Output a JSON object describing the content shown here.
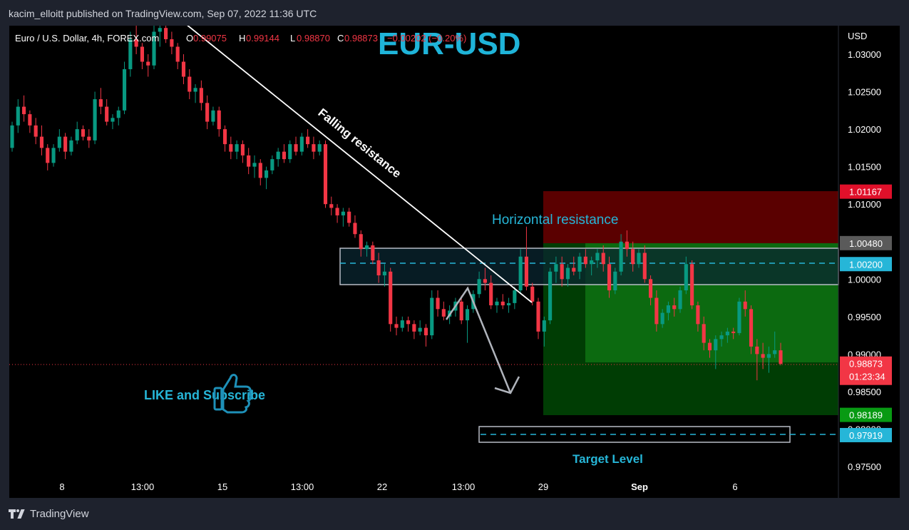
{
  "header": {
    "published_line": "kacim_elloitt published on TradingView.com, Sep 07, 2022 11:36 UTC"
  },
  "legend": {
    "symbol": "Euro / U.S. Dollar, 4h, FOREX.com",
    "open_label": "O",
    "open_value": "0.99075",
    "high_label": "H",
    "high_value": "0.99144",
    "low_label": "L",
    "low_value": "0.98870",
    "close_label": "C",
    "close_value": "0.98873",
    "change_value": "−0.00202 (−0.20%)"
  },
  "chart_data": {
    "type": "candlestick",
    "title": "EUR-USD",
    "currency_label": "USD",
    "ylim": [
      0.972,
      1.0355
    ],
    "y_ticks": [
      "1.03000",
      "1.02500",
      "1.02000",
      "1.01500",
      "1.01000",
      "1.00500",
      "1.00000",
      "0.99500",
      "0.99000",
      "0.98500",
      "0.98000",
      "0.97500"
    ],
    "x_ticks": [
      "8",
      "13:00",
      "15",
      "13:00",
      "22",
      "13:00",
      "29",
      "Sep",
      "6"
    ],
    "price_tags": [
      {
        "label": "1.01167",
        "value": 1.01167,
        "color": "#e0102a"
      },
      {
        "label": "1.00480",
        "value": 1.0048,
        "color": "#5a5a5a"
      },
      {
        "label": "1.00200",
        "value": 1.002,
        "color": "#26b6d8"
      },
      {
        "label": "0.98873",
        "value": 0.98873,
        "color": "#f23645",
        "extra": "01:23:34"
      },
      {
        "label": "0.98189",
        "value": 0.98189,
        "color": "#089a13"
      },
      {
        "label": "0.97919",
        "value": 0.97919,
        "color": "#26b6d8"
      }
    ],
    "annotations": {
      "falling_resistance": "Falling resistance",
      "horizontal_resistance": "Horizontal resistance",
      "target_level": "Target Level",
      "like_subscribe": "LIKE and Subscribe"
    },
    "levels": {
      "stop_loss": 1.01167,
      "entry": 1.0048,
      "resistance_mid": 1.002,
      "resistance_zone": [
        0.9993,
        1.0044
      ],
      "current_price": 0.98873,
      "take_profit": 0.98189,
      "target_level": 0.97919
    },
    "colors": {
      "up": "#089981",
      "down": "#f23645",
      "accent": "#26b6d8"
    },
    "candles": [
      [
        1.0175,
        1.021,
        1.017,
        1.0205
      ],
      [
        1.0205,
        1.024,
        1.0195,
        1.023
      ],
      [
        1.023,
        1.0245,
        1.021,
        1.022
      ],
      [
        1.022,
        1.0225,
        1.0195,
        1.0205
      ],
      [
        1.0205,
        1.0215,
        1.018,
        1.019
      ],
      [
        1.019,
        1.0205,
        1.0165,
        1.0175
      ],
      [
        1.0175,
        1.018,
        1.0145,
        1.0155
      ],
      [
        1.0155,
        1.018,
        1.015,
        1.0175
      ],
      [
        1.0175,
        1.02,
        1.017,
        1.019
      ],
      [
        1.019,
        1.0195,
        1.016,
        1.017
      ],
      [
        1.017,
        1.019,
        1.0165,
        1.0185
      ],
      [
        1.0185,
        1.021,
        1.018,
        1.02
      ],
      [
        1.02,
        1.0205,
        1.0185,
        1.019
      ],
      [
        1.019,
        1.02,
        1.0175,
        1.0185
      ],
      [
        1.0185,
        1.025,
        1.018,
        1.024
      ],
      [
        1.024,
        1.0255,
        1.022,
        1.023
      ],
      [
        1.023,
        1.024,
        1.0205,
        1.021
      ],
      [
        1.021,
        1.022,
        1.02,
        1.0215
      ],
      [
        1.0215,
        1.023,
        1.0205,
        1.0225
      ],
      [
        1.0225,
        1.029,
        1.022,
        1.028
      ],
      [
        1.028,
        1.033,
        1.027,
        1.032
      ],
      [
        1.032,
        1.035,
        1.03,
        1.031
      ],
      [
        1.031,
        1.0315,
        1.028,
        1.029
      ],
      [
        1.029,
        1.03,
        1.027,
        1.0285
      ],
      [
        1.0285,
        1.034,
        1.028,
        1.033
      ],
      [
        1.033,
        1.0345,
        1.031,
        1.0335
      ],
      [
        1.0335,
        1.034,
        1.0315,
        1.032
      ],
      [
        1.032,
        1.033,
        1.03,
        1.031
      ],
      [
        1.031,
        1.0315,
        1.028,
        1.029
      ],
      [
        1.029,
        1.03,
        1.026,
        1.027
      ],
      [
        1.027,
        1.028,
        1.024,
        1.025
      ],
      [
        1.025,
        1.026,
        1.0235,
        1.0255
      ],
      [
        1.0255,
        1.0265,
        1.0225,
        1.0235
      ],
      [
        1.0235,
        1.0245,
        1.02,
        1.021
      ],
      [
        1.021,
        1.023,
        1.0205,
        1.0225
      ],
      [
        1.0225,
        1.023,
        1.019,
        1.02
      ],
      [
        1.02,
        1.0205,
        1.017,
        1.018
      ],
      [
        1.018,
        1.019,
        1.016,
        1.017
      ],
      [
        1.017,
        1.0185,
        1.016,
        1.018
      ],
      [
        1.018,
        1.0185,
        1.0155,
        1.0165
      ],
      [
        1.0165,
        1.0175,
        1.014,
        1.015
      ],
      [
        1.015,
        1.0165,
        1.0135,
        1.0155
      ],
      [
        1.0155,
        1.016,
        1.0125,
        1.0135
      ],
      [
        1.0135,
        1.015,
        1.012,
        1.0145
      ],
      [
        1.0145,
        1.0165,
        1.014,
        1.016
      ],
      [
        1.016,
        1.0175,
        1.015,
        1.017
      ],
      [
        1.017,
        1.018,
        1.0155,
        1.016
      ],
      [
        1.016,
        1.0185,
        1.0155,
        1.018
      ],
      [
        1.018,
        1.019,
        1.0165,
        1.017
      ],
      [
        1.017,
        1.0195,
        1.0165,
        1.019
      ],
      [
        1.019,
        1.02,
        1.0175,
        1.018
      ],
      [
        1.018,
        1.019,
        1.016,
        1.017
      ],
      [
        1.017,
        1.0185,
        1.0165,
        1.018
      ],
      [
        1.018,
        1.0185,
        1.0095,
        1.01
      ],
      [
        1.01,
        1.011,
        1.0085,
        1.0095
      ],
      [
        1.0095,
        1.01,
        1.0075,
        1.0085
      ],
      [
        1.0085,
        1.0095,
        1.007,
        1.009
      ],
      [
        1.009,
        1.0095,
        1.007,
        1.0075
      ],
      [
        1.0075,
        1.0085,
        1.0055,
        1.006
      ],
      [
        1.006,
        1.0065,
        1.003,
        1.004
      ],
      [
        1.004,
        1.005,
        1.003,
        1.0045
      ],
      [
        1.0045,
        1.005,
        1.002,
        1.0025
      ],
      [
        1.0025,
        1.0035,
        0.9995,
        1.0005
      ],
      [
        1.0005,
        1.002,
        0.999,
        1.001
      ],
      [
        1.001,
        1.0015,
        0.993,
        0.994
      ],
      [
        0.994,
        0.995,
        0.9925,
        0.9935
      ],
      [
        0.9935,
        0.995,
        0.993,
        0.9945
      ],
      [
        0.9945,
        0.995,
        0.993,
        0.994
      ],
      [
        0.994,
        0.9945,
        0.992,
        0.993
      ],
      [
        0.993,
        0.9945,
        0.9925,
        0.9935
      ],
      [
        0.9935,
        0.994,
        0.991,
        0.9925
      ],
      [
        0.9925,
        0.9985,
        0.992,
        0.9975
      ],
      [
        0.9975,
        0.9985,
        0.995,
        0.996
      ],
      [
        0.996,
        0.997,
        0.9945,
        0.995
      ],
      [
        0.995,
        0.9965,
        0.994,
        0.9958
      ],
      [
        0.9958,
        0.9975,
        0.995,
        0.997
      ],
      [
        0.997,
        0.9978,
        0.994,
        0.9945
      ],
      [
        0.9945,
        0.9965,
        0.9915,
        0.996
      ],
      [
        0.996,
        0.9985,
        0.9955,
        0.998
      ],
      [
        0.998,
        1.001,
        0.9975,
        1.0
      ],
      [
        1.0,
        1.0015,
        0.9985,
        0.9995
      ],
      [
        0.9995,
        1.0005,
        0.996,
        0.9965
      ],
      [
        0.9965,
        0.9975,
        0.9955,
        0.997
      ],
      [
        0.997,
        0.998,
        0.996,
        0.9965
      ],
      [
        0.9965,
        0.9975,
        0.9955,
        0.9968
      ],
      [
        0.9968,
        0.999,
        0.996,
        0.9985
      ],
      [
        0.9985,
        1.004,
        0.998,
        1.003
      ],
      [
        1.003,
        1.007,
        0.9985,
        0.999
      ],
      [
        0.999,
        0.9995,
        0.9965,
        0.997
      ],
      [
        0.997,
        0.9975,
        0.992,
        0.993
      ],
      [
        0.993,
        0.995,
        0.991,
        0.9945
      ],
      [
        0.9945,
        1.0015,
        0.994,
        1.001
      ],
      [
        1.001,
        1.003,
        0.9995,
        1.002
      ],
      [
        1.002,
        1.003,
        0.999,
        1.0
      ],
      [
        1.0,
        1.002,
        0.999,
        1.0015
      ],
      [
        1.0015,
        1.003,
        1.0005,
        1.001
      ],
      [
        1.001,
        1.0035,
        1.0,
        1.003
      ],
      [
        1.003,
        1.004,
        1.0015,
        1.002
      ],
      [
        1.002,
        1.003,
        1.0005,
        1.0025
      ],
      [
        1.0025,
        1.004,
        1.0015,
        1.0035
      ],
      [
        1.0035,
        1.0045,
        1.001,
        1.002
      ],
      [
        1.002,
        1.003,
        0.9975,
        0.9985
      ],
      [
        0.9985,
        1.0015,
        0.998,
        1.001
      ],
      [
        1.001,
        1.006,
        1.0005,
        1.005
      ],
      [
        1.005,
        1.0065,
        1.003,
        1.004
      ],
      [
        1.004,
        1.005,
        1.001,
        1.002
      ],
      [
        1.002,
        1.004,
        1.0015,
        1.0035
      ],
      [
        1.0035,
        1.0045,
        0.9995,
        1.0
      ],
      [
        1.0,
        1.0005,
        0.9965,
        0.9975
      ],
      [
        0.9975,
        0.9985,
        0.993,
        0.994
      ],
      [
        0.994,
        0.996,
        0.9935,
        0.9955
      ],
      [
        0.9955,
        0.997,
        0.9945,
        0.9965
      ],
      [
        0.9965,
        0.9975,
        0.995,
        0.996
      ],
      [
        0.996,
        0.999,
        0.9955,
        0.9985
      ],
      [
        0.9985,
        1.003,
        0.998,
        1.002
      ],
      [
        1.002,
        1.0025,
        0.996,
        0.9965
      ],
      [
        0.9965,
        0.997,
        0.993,
        0.994
      ],
      [
        0.994,
        0.995,
        0.9905,
        0.9915
      ],
      [
        0.9915,
        0.992,
        0.9895,
        0.9905
      ],
      [
        0.9905,
        0.9925,
        0.988,
        0.992
      ],
      [
        0.992,
        0.993,
        0.991,
        0.9925
      ],
      [
        0.9925,
        0.9935,
        0.9915,
        0.993
      ],
      [
        0.993,
        0.9935,
        0.992,
        0.9928
      ],
      [
        0.9928,
        0.9975,
        0.9925,
        0.997
      ],
      [
        0.997,
        0.9985,
        0.995,
        0.996
      ],
      [
        0.996,
        0.9965,
        0.99,
        0.991
      ],
      [
        0.991,
        0.992,
        0.9865,
        0.99
      ],
      [
        0.99,
        0.9915,
        0.988,
        0.9895
      ],
      [
        0.9895,
        0.991,
        0.9875,
        0.99
      ],
      [
        0.99,
        0.993,
        0.9895,
        0.9905
      ],
      [
        0.9905,
        0.9915,
        0.9885,
        0.9887
      ]
    ]
  }
}
